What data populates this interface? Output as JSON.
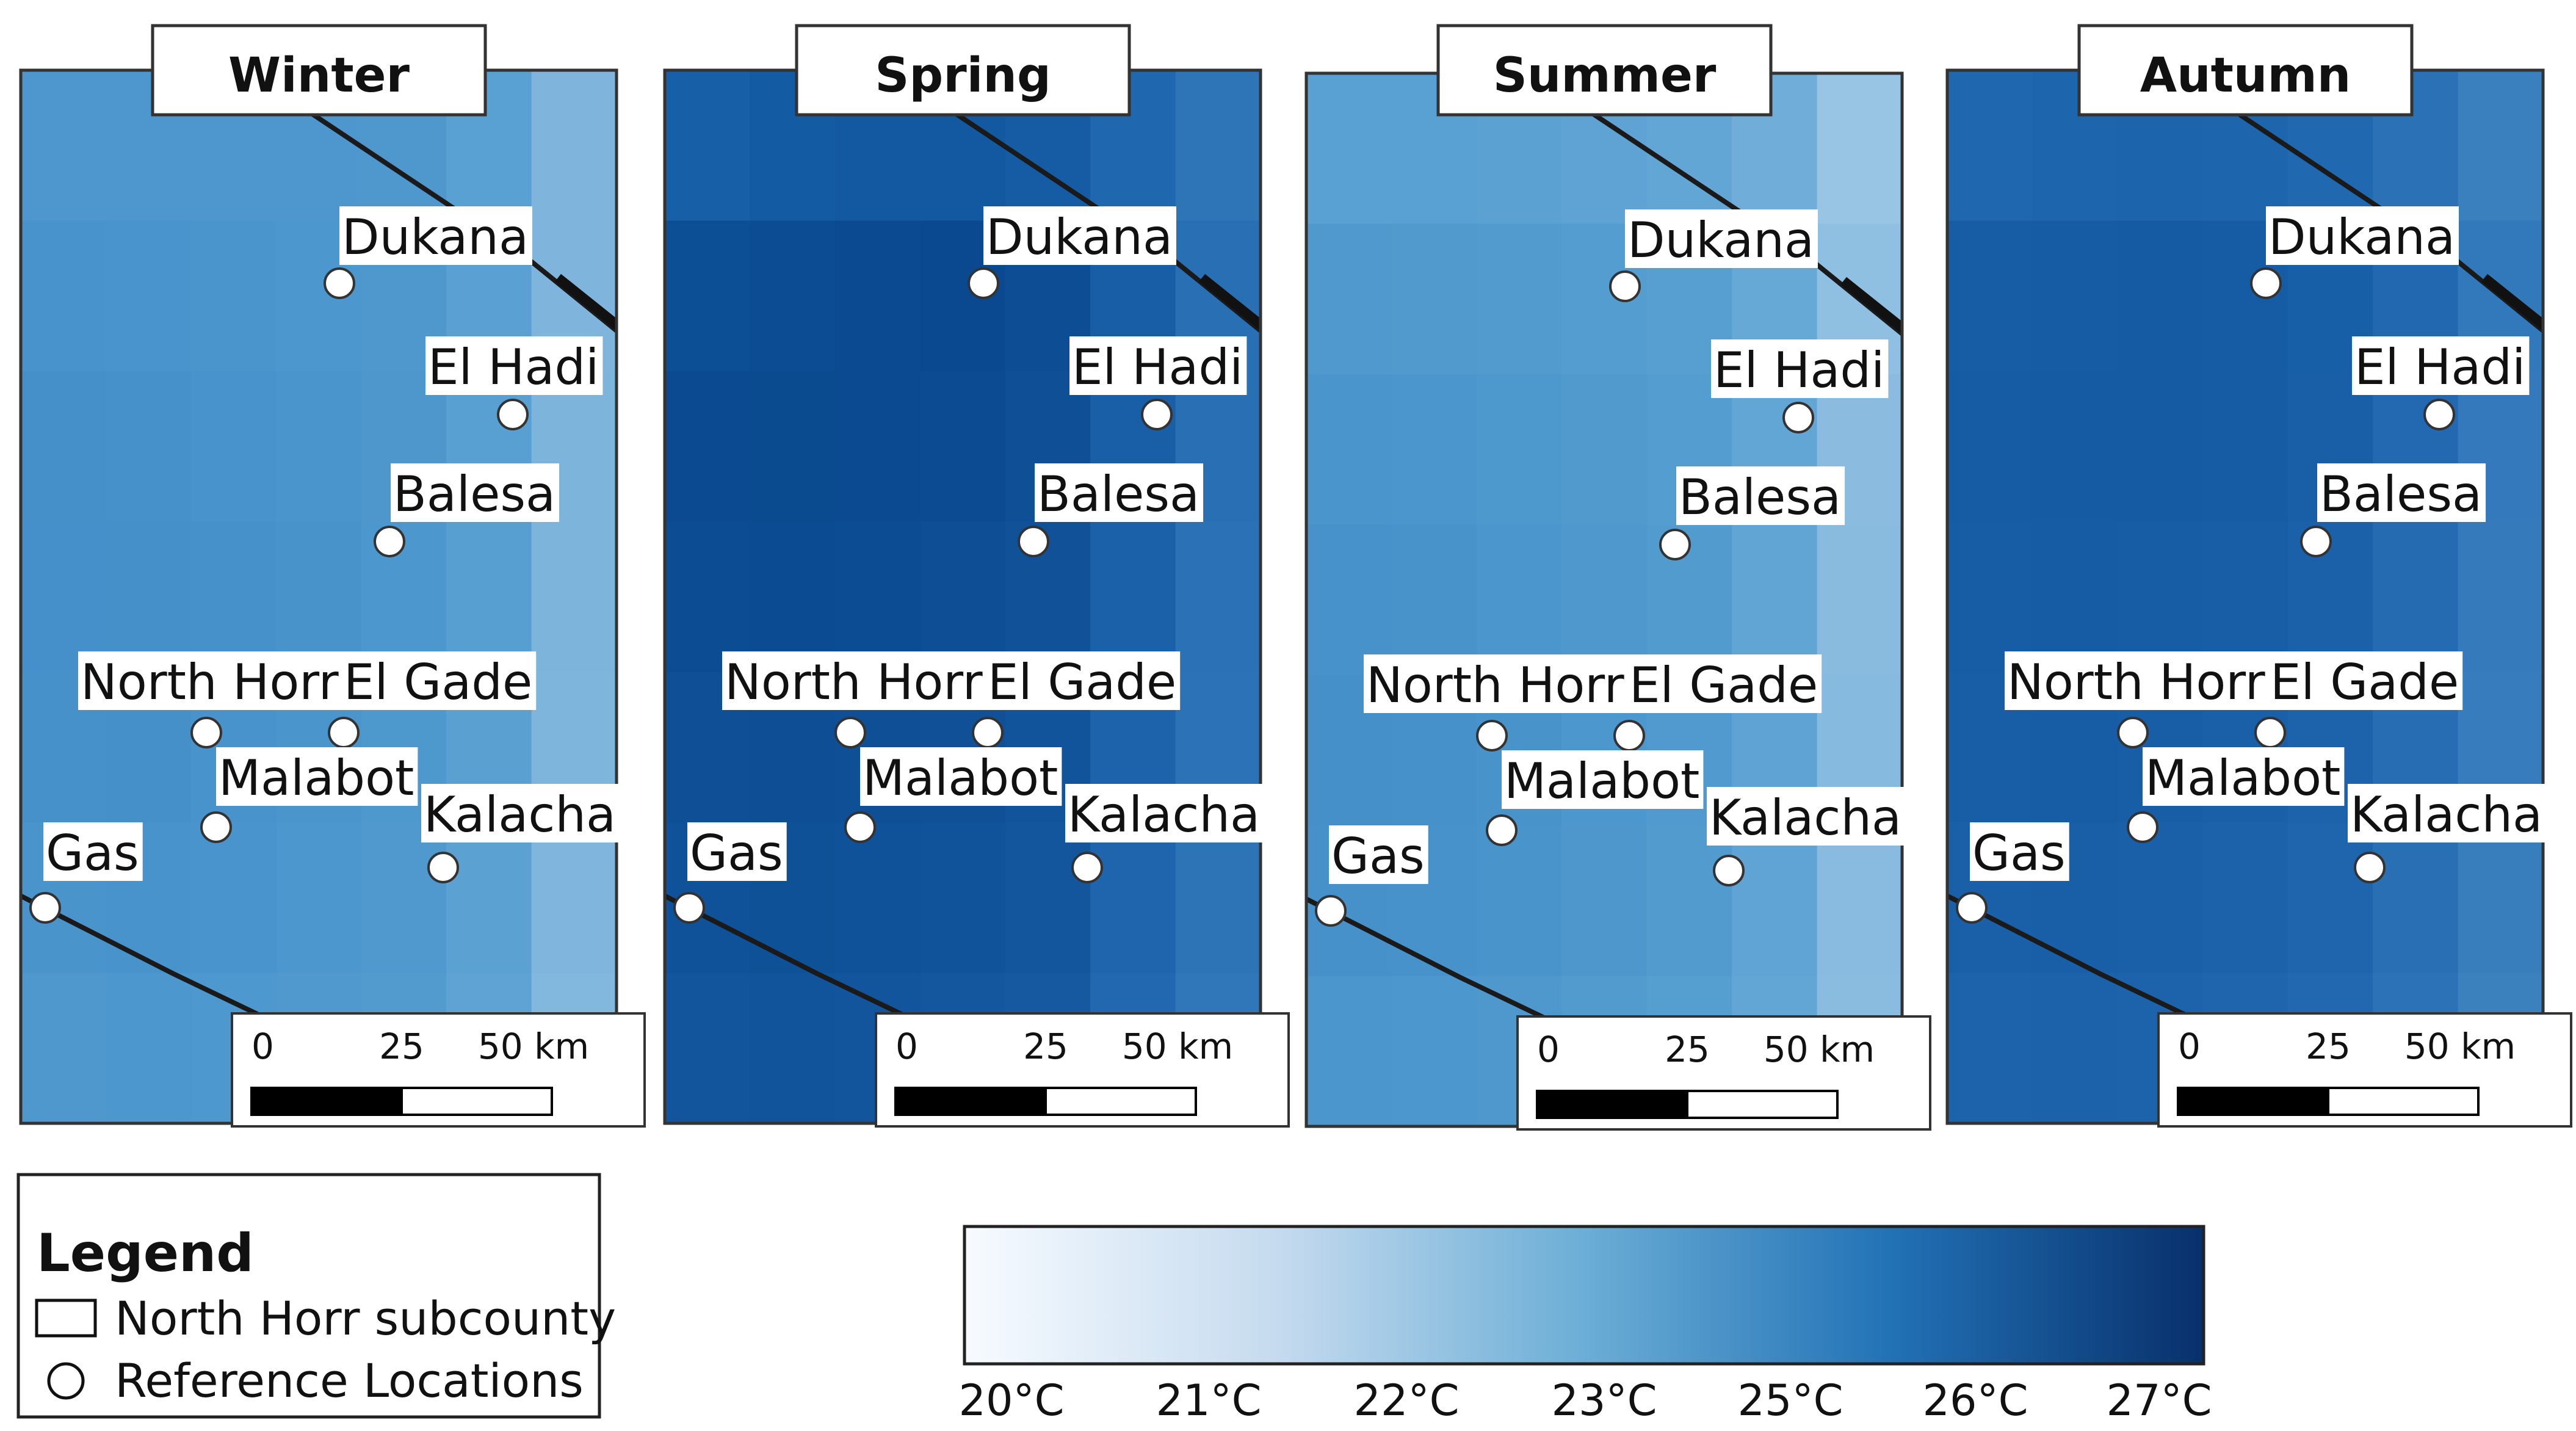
{
  "panels": [
    {
      "id": "winter",
      "title": "Winter",
      "base_color": "#4a93cb",
      "cells": [
        [
          "#4e97ce",
          "#4e97ce",
          "#4e97ce",
          "#4e97ce",
          "#4f98ce",
          "#5aa1d3",
          "#7fb5dd"
        ],
        [
          "#4893cb",
          "#4994cc",
          "#4a95cc",
          "#4c97cd",
          "#4e98cd",
          "#5aa0d2",
          "#7fb5dd"
        ],
        [
          "#4690ca",
          "#4791cb",
          "#4893cb",
          "#4a95cc",
          "#4d97cd",
          "#58a0d2",
          "#7db4dc"
        ],
        [
          "#458fca",
          "#4690ca",
          "#4791cb",
          "#4993cb",
          "#4c97cd",
          "#589fd1",
          "#7db4dc"
        ],
        [
          "#4791cb",
          "#4690ca",
          "#4893cb",
          "#4a95cc",
          "#4d98cd",
          "#5aa1d2",
          "#7eb5dd"
        ],
        [
          "#4a94cc",
          "#4893cb",
          "#4994cc",
          "#4c97cd",
          "#4f99ce",
          "#5ba2d3",
          "#80b6dd"
        ],
        [
          "#4e98ce",
          "#4c97cd",
          "#4d98ce",
          "#4f99ce",
          "#529bcf",
          "#5ea3d4",
          "#82b7de"
        ]
      ],
      "locations": [
        "Dukana",
        "El Hadi",
        "Balesa",
        "North Horr",
        "El Gade",
        "Malabot",
        "Kalacha",
        "Gas"
      ]
    },
    {
      "id": "spring",
      "title": "Spring",
      "base_color": "#0c4e93",
      "cells": [
        [
          "#1760a8",
          "#135ba3",
          "#1259a1",
          "#1259a1",
          "#155ca4",
          "#1f67ae",
          "#2e75b8"
        ],
        [
          "#0d4f95",
          "#0c4c92",
          "#0b4a90",
          "#0a498f",
          "#0d4d94",
          "#175ea6",
          "#286fb4"
        ],
        [
          "#0b4a90",
          "#0a4a8f",
          "#0b4a90",
          "#0c4b91",
          "#0e4f96",
          "#185fa7",
          "#296fb4"
        ],
        [
          "#0c4c92",
          "#0b4b91",
          "#0c4c92",
          "#0d4e94",
          "#105198",
          "#1a61a9",
          "#2a71b5"
        ],
        [
          "#0e4f96",
          "#0d4e94",
          "#0e4f95",
          "#0f5097",
          "#12549b",
          "#1c63ab",
          "#2c72b6"
        ],
        [
          "#105299",
          "#0f5197",
          "#105299",
          "#11539a",
          "#14569d",
          "#1e65ad",
          "#2d74b7"
        ],
        [
          "#12559c",
          "#11549b",
          "#12559c",
          "#14579e",
          "#1759a1",
          "#2168b0",
          "#3077b9"
        ]
      ],
      "locations": [
        "Dukana",
        "El Hadi",
        "Balesa",
        "North Horr",
        "El Gade",
        "Malabot",
        "Kalacha",
        "Gas"
      ]
    },
    {
      "id": "summer",
      "title": "Summer",
      "base_color": "#4a95cc",
      "cells": [
        [
          "#5aa1d3",
          "#5aa1d3",
          "#5ba2d3",
          "#5ea3d4",
          "#62a6d5",
          "#70aed9",
          "#98c5e3"
        ],
        [
          "#4f99ce",
          "#509ace",
          "#529bcf",
          "#549dd0",
          "#589fd1",
          "#66a8d6",
          "#8fbfe1"
        ],
        [
          "#4a95cc",
          "#4b96cc",
          "#4d98cd",
          "#509ace",
          "#549dd0",
          "#62a6d5",
          "#8bbce0"
        ],
        [
          "#4892cb",
          "#4993cb",
          "#4b96cc",
          "#4e98cd",
          "#529bcf",
          "#60a5d4",
          "#89bbdf"
        ],
        [
          "#4690ca",
          "#4791cb",
          "#4993cb",
          "#4c97cd",
          "#509acf",
          "#5ea3d4",
          "#87badf"
        ],
        [
          "#4791cb",
          "#4892cb",
          "#4a94cc",
          "#4d97cd",
          "#519bcf",
          "#5fa4d4",
          "#88bbdf"
        ],
        [
          "#4b96cc",
          "#4c97cd",
          "#4e98cd",
          "#519bcf",
          "#559ed0",
          "#62a6d5",
          "#8abce0"
        ]
      ],
      "locations": [
        "Dukana",
        "El Hadi",
        "Balesa",
        "North Horr",
        "El Gade",
        "Malabot",
        "Kalacha",
        "Gas"
      ]
    },
    {
      "id": "autumn",
      "title": "Autumn",
      "base_color": "#175ea6",
      "cells": [
        [
          "#1f67ae",
          "#1d65ac",
          "#1c64ab",
          "#1d65ac",
          "#2068af",
          "#2a71b5",
          "#3a80be"
        ],
        [
          "#165da5",
          "#155ca4",
          "#145ba3",
          "#155ca4",
          "#175fa7",
          "#2168b0",
          "#3279bb"
        ],
        [
          "#155ca4",
          "#145ba3",
          "#145ba3",
          "#155ca4",
          "#185fa7",
          "#2269b1",
          "#3379bb"
        ],
        [
          "#165da5",
          "#155ca4",
          "#165da5",
          "#175ea6",
          "#1a61a9",
          "#246bb2",
          "#357bbc"
        ],
        [
          "#175ea6",
          "#165da5",
          "#175ea6",
          "#1960a8",
          "#1c63ab",
          "#266db3",
          "#377dbd"
        ],
        [
          "#1960a8",
          "#185fa7",
          "#1960a8",
          "#1b62aa",
          "#1e65ad",
          "#286fb4",
          "#387ebd"
        ],
        [
          "#1c63ab",
          "#1b62aa",
          "#1c63ab",
          "#1e65ad",
          "#2168b0",
          "#2b72b6",
          "#3b81be"
        ]
      ],
      "locations": [
        "Dukana",
        "El Hadi",
        "Balesa",
        "North Horr",
        "El Gade",
        "Malabot",
        "Kalacha",
        "Gas"
      ]
    }
  ],
  "scale_bar": {
    "ticks": [
      "0",
      "25",
      "50 km"
    ]
  },
  "legend": {
    "title": "Legend",
    "items": [
      {
        "symbol": "rectangle",
        "label": "North Horr subcounty"
      },
      {
        "symbol": "circle",
        "label": "Reference Locations"
      }
    ]
  },
  "colorbar": {
    "start_color": "#f7fbff",
    "end_color": "#08306b",
    "stops": [
      "#f7fbff",
      "#c6dbef",
      "#6baed6",
      "#2171b5",
      "#08306b"
    ],
    "labels": [
      "20°C",
      "21°C",
      "22°C",
      "23°C",
      "25°C",
      "26°C",
      "27°C"
    ]
  }
}
